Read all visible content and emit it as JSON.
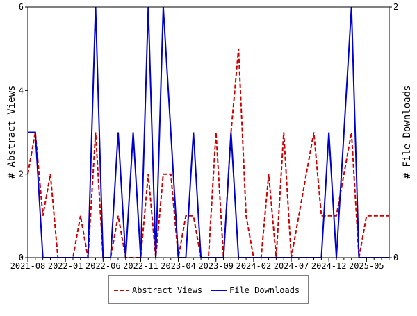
{
  "chart_data": {
    "type": "line",
    "title": "",
    "xlabel": "",
    "ylabel": "# Abstract Views",
    "y2label": "# File Downloads",
    "ylim": [
      0,
      6
    ],
    "y2lim": [
      0,
      2
    ],
    "yticks": [
      "0",
      "2",
      "4",
      "6"
    ],
    "y2ticks": [
      "0",
      "2"
    ],
    "xtick_labels": [
      "2021-08",
      "2022-01",
      "2022-06",
      "2022-11",
      "2023-04",
      "2023-09",
      "2024-02",
      "2024-07",
      "2024-12",
      "2025-05"
    ],
    "x_start": "2021-08",
    "x_count_months": 49,
    "series": [
      {
        "name": "Abstract Views",
        "axis": "left",
        "color": "#cc0000",
        "style": "dashed",
        "values": [
          2,
          3,
          1,
          2,
          0,
          0,
          0,
          1,
          0,
          3,
          0,
          0,
          1,
          0,
          0,
          0,
          2,
          0,
          2,
          2,
          0,
          1,
          1,
          0,
          0,
          3,
          0,
          3,
          5,
          1,
          0,
          0,
          2,
          0,
          3,
          0,
          1,
          2,
          3,
          1,
          1,
          1,
          2,
          3,
          0,
          1,
          1,
          1,
          1
        ]
      },
      {
        "name": "File Downloads",
        "axis": "right",
        "color": "#0000cc",
        "style": "solid",
        "values": [
          1,
          1,
          0,
          0,
          0,
          0,
          0,
          0,
          0,
          2,
          0,
          0,
          1,
          0,
          1,
          0,
          2,
          0,
          2,
          1,
          0,
          0,
          1,
          0,
          0,
          0,
          0,
          1,
          0,
          0,
          0,
          0,
          0,
          0,
          0,
          0,
          0,
          0,
          0,
          0,
          1,
          0,
          1,
          2,
          0,
          0,
          0,
          0,
          0
        ]
      }
    ],
    "legend": {
      "placement": "bottom-center",
      "labels": [
        "Abstract Views",
        "File Downloads"
      ]
    },
    "grid": false
  }
}
